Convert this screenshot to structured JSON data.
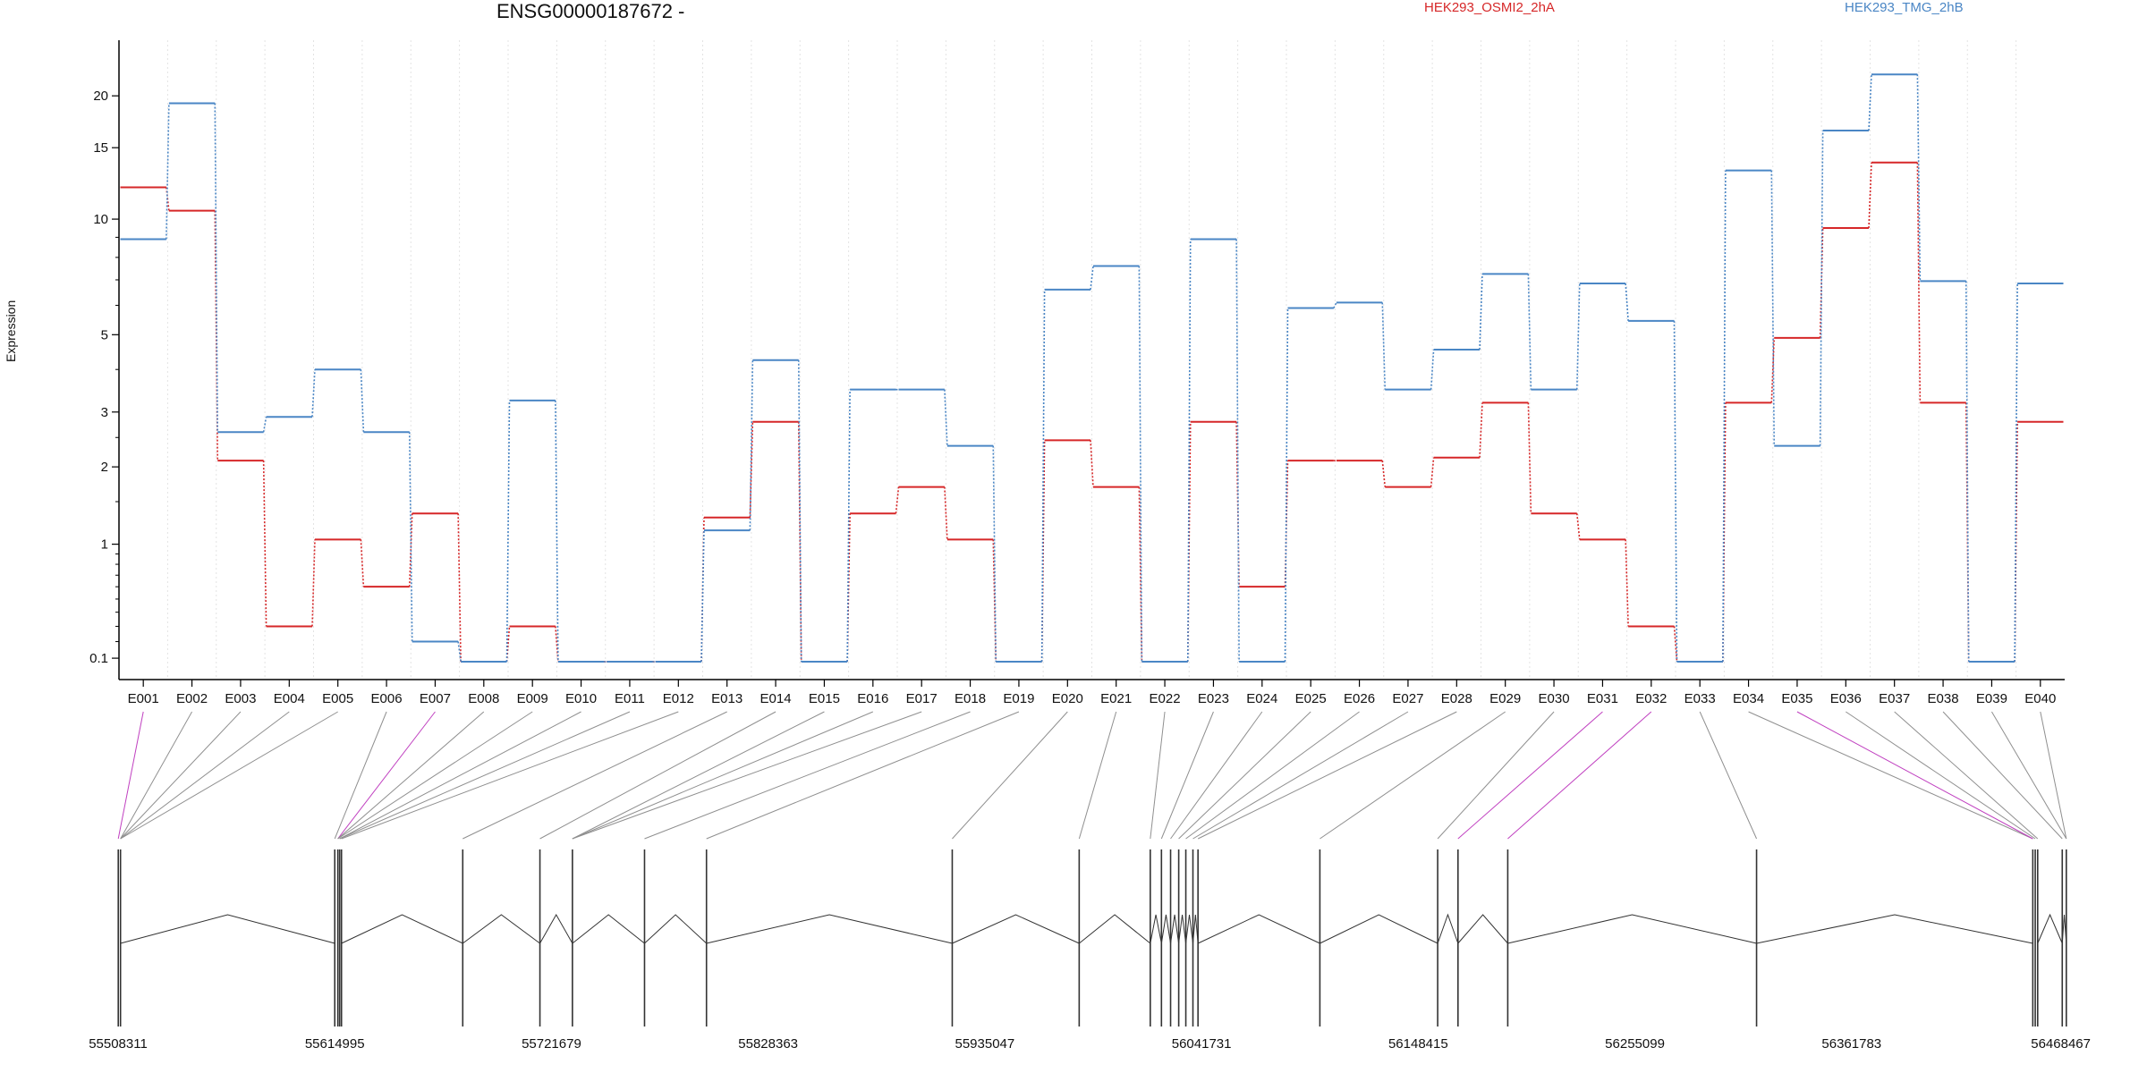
{
  "chart_data": {
    "type": "line",
    "title": "ENSG00000187672 -",
    "xlabel": "",
    "ylabel": "Expression",
    "y_scale": "log(1+y)",
    "y_ticks": [
      0.1,
      1,
      2,
      3,
      5,
      10,
      15,
      20
    ],
    "ylim": [
      0.08,
      24
    ],
    "grid": "vertical dotted lines at exon bins",
    "legend_position": "top-right",
    "categories": [
      "E001",
      "E002",
      "E003",
      "E004",
      "E005",
      "E006",
      "E007",
      "E008",
      "E009",
      "E010",
      "E011",
      "E012",
      "E013",
      "E014",
      "E015",
      "E016",
      "E017",
      "E018",
      "E019",
      "E020",
      "E021",
      "E022",
      "E023",
      "E024",
      "E025",
      "E026",
      "E027",
      "E028",
      "E029",
      "E030",
      "E031",
      "E032",
      "E033",
      "E034",
      "E035",
      "E036",
      "E037",
      "E038",
      "E039",
      "E040"
    ],
    "series": [
      {
        "name": "HEK293_OSMI2_2hA",
        "color": "#d62728",
        "values": [
          12.0,
          10.5,
          2.1,
          0.3,
          1.05,
          0.6,
          1.35,
          0.08,
          0.3,
          0.08,
          0.08,
          0.08,
          1.3,
          2.8,
          0.08,
          1.35,
          1.7,
          1.05,
          0.08,
          2.45,
          1.7,
          0.08,
          2.8,
          0.6,
          2.1,
          2.1,
          1.7,
          2.15,
          3.2,
          1.35,
          1.05,
          0.3,
          0.08,
          3.2,
          4.9,
          9.5,
          13.8,
          3.2,
          0.08,
          2.8
        ]
      },
      {
        "name": "HEK293_TMG_2hB",
        "color": "#4a86c5",
        "values": [
          8.9,
          19.2,
          2.6,
          2.9,
          4.0,
          2.6,
          0.2,
          0.08,
          3.25,
          0.08,
          0.08,
          0.08,
          1.15,
          4.25,
          0.08,
          3.5,
          3.5,
          2.35,
          0.08,
          6.6,
          7.6,
          0.08,
          8.9,
          0.08,
          5.9,
          6.1,
          3.5,
          4.55,
          7.25,
          3.5,
          6.85,
          5.45,
          0.08,
          13.2,
          2.35,
          16.5,
          22.5,
          6.95,
          0.08,
          6.85
        ]
      }
    ],
    "genomic_axis": {
      "tick_labels": [
        "55508311",
        "55614995",
        "55721679",
        "55828363",
        "55935047",
        "56041731",
        "56148415",
        "56255099",
        "56361783",
        "56468467"
      ],
      "range": [
        55508311,
        56468467
      ]
    }
  },
  "colors": {
    "axis": "#000000",
    "grid": "#e3e3e3",
    "connector": "#8f8f8f",
    "connector_highlight": "#c040c0",
    "gene_model": "#333333"
  }
}
